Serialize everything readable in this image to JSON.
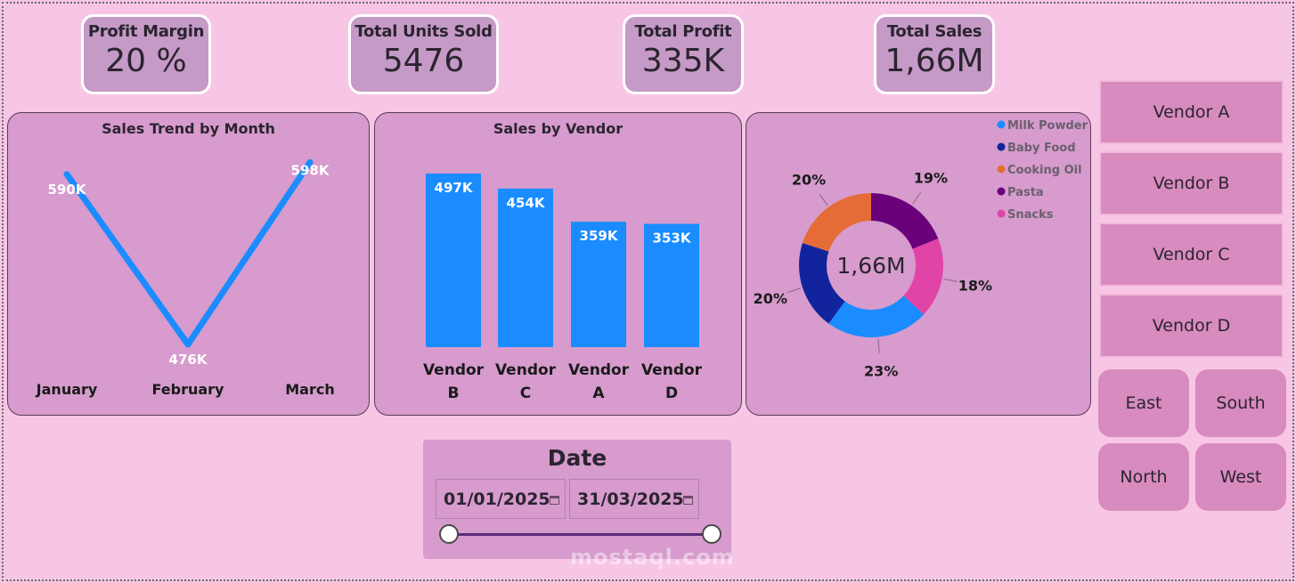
{
  "kpis": {
    "profit_margin": {
      "label": "Profit Margin",
      "value": "20 %"
    },
    "units_sold": {
      "label": "Total Units Sold",
      "value": "5476"
    },
    "total_profit": {
      "label": "Total Profit",
      "value": "335K"
    },
    "total_sales": {
      "label": "Total Sales",
      "value": "1,66M"
    }
  },
  "chart_data": [
    {
      "type": "line",
      "title": "Sales Trend by Month",
      "categories": [
        "January",
        "February",
        "March"
      ],
      "values": [
        590,
        476,
        598
      ],
      "data_labels": [
        "590K",
        "476K",
        "598K"
      ],
      "color": "#1a8cff"
    },
    {
      "type": "bar",
      "title": "Sales by Vendor",
      "categories": [
        [
          "Vendor",
          "B"
        ],
        [
          "Vendor",
          "C"
        ],
        [
          "Vendor",
          "A"
        ],
        [
          "Vendor",
          "D"
        ]
      ],
      "values": [
        497,
        454,
        359,
        353
      ],
      "data_labels": [
        "497K",
        "454K",
        "359K",
        "353K"
      ],
      "color": "#1a8cff"
    },
    {
      "type": "pie",
      "center_label": "1,66M",
      "legend_position": "top-right",
      "slices": [
        {
          "name": "Milk Powder",
          "value": 23,
          "label": "23%",
          "color": "#1a8cff"
        },
        {
          "name": "Baby Food",
          "value": 20,
          "label": "20%",
          "color": "#12239e"
        },
        {
          "name": "Cooking Oil",
          "value": 20,
          "label": "20%",
          "color": "#e66c37"
        },
        {
          "name": "Pasta",
          "value": 19,
          "label": "19%",
          "color": "#6b007b"
        },
        {
          "name": "Snacks",
          "value": 18,
          "label": "18%",
          "color": "#e044a7"
        }
      ]
    }
  ],
  "vendors": [
    "Vendor A",
    "Vendor B",
    "Vendor C",
    "Vendor D"
  ],
  "regions": [
    "East",
    "South",
    "North",
    "West"
  ],
  "date_filter": {
    "title": "Date",
    "start": "01/01/2025",
    "end": "31/03/2025"
  },
  "watermark": "mostaql.com",
  "colors": {
    "background": "#f8c6e5",
    "panel": "#d79bcd",
    "kpi": "#c59ac7",
    "accent": "#1a8cff"
  }
}
